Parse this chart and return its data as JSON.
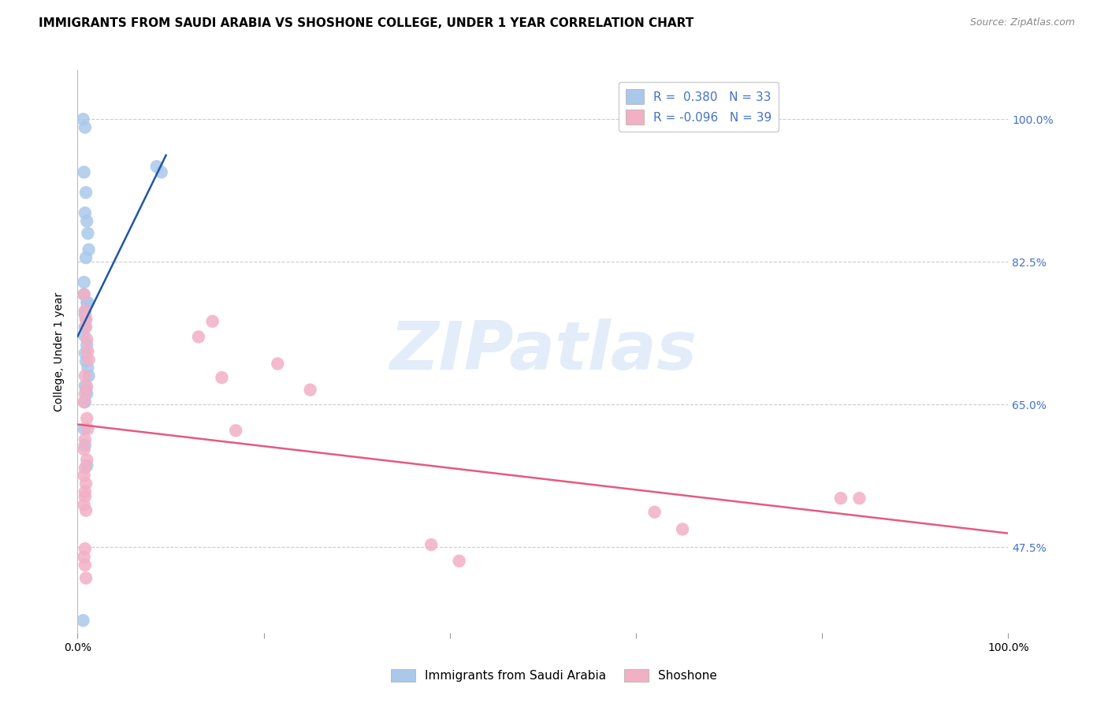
{
  "title": "IMMIGRANTS FROM SAUDI ARABIA VS SHOSHONE COLLEGE, UNDER 1 YEAR CORRELATION CHART",
  "source": "Source: ZipAtlas.com",
  "ylabel": "College, Under 1 year",
  "xlim": [
    0.0,
    1.0
  ],
  "ylim": [
    0.37,
    1.06
  ],
  "x_tick_labels": [
    "0.0%",
    "100.0%"
  ],
  "x_tick_positions": [
    0.0,
    1.0
  ],
  "y_tick_labels": [
    "47.5%",
    "65.0%",
    "82.5%",
    "100.0%"
  ],
  "y_tick_positions": [
    0.475,
    0.65,
    0.825,
    1.0
  ],
  "blue_label": "Immigrants from Saudi Arabia",
  "pink_label": "Shoshone",
  "blue_R": "0.380",
  "blue_N": "33",
  "pink_R": "-0.096",
  "pink_N": "39",
  "blue_color": "#aac8ea",
  "pink_color": "#f2b0c5",
  "blue_line_color": "#2055a5",
  "pink_line_color": "#e55a80",
  "blue_x": [
    0.006,
    0.008,
    0.007,
    0.009,
    0.008,
    0.01,
    0.011,
    0.012,
    0.009,
    0.007,
    0.007,
    0.01,
    0.011,
    0.008,
    0.008,
    0.009,
    0.008,
    0.007,
    0.01,
    0.008,
    0.009,
    0.011,
    0.012,
    0.008,
    0.009,
    0.01,
    0.008,
    0.007,
    0.008,
    0.01,
    0.085,
    0.09,
    0.006
  ],
  "blue_y": [
    1.0,
    0.99,
    0.935,
    0.91,
    0.885,
    0.875,
    0.86,
    0.84,
    0.83,
    0.8,
    0.785,
    0.775,
    0.775,
    0.763,
    0.76,
    0.754,
    0.745,
    0.735,
    0.723,
    0.713,
    0.703,
    0.695,
    0.685,
    0.673,
    0.668,
    0.663,
    0.653,
    0.62,
    0.6,
    0.575,
    0.942,
    0.935,
    0.385
  ],
  "pink_x": [
    0.007,
    0.008,
    0.009,
    0.009,
    0.01,
    0.011,
    0.012,
    0.008,
    0.01,
    0.008,
    0.007,
    0.01,
    0.011,
    0.008,
    0.007,
    0.01,
    0.008,
    0.007,
    0.009,
    0.008,
    0.008,
    0.007,
    0.009,
    0.13,
    0.145,
    0.155,
    0.17,
    0.215,
    0.25,
    0.38,
    0.41,
    0.62,
    0.65,
    0.82,
    0.84,
    0.008,
    0.007,
    0.008,
    0.009
  ],
  "pink_y": [
    0.785,
    0.765,
    0.755,
    0.745,
    0.73,
    0.715,
    0.705,
    0.685,
    0.672,
    0.663,
    0.653,
    0.633,
    0.62,
    0.607,
    0.595,
    0.582,
    0.572,
    0.563,
    0.553,
    0.543,
    0.537,
    0.527,
    0.52,
    0.733,
    0.752,
    0.683,
    0.618,
    0.7,
    0.668,
    0.478,
    0.458,
    0.518,
    0.497,
    0.535,
    0.535,
    0.473,
    0.463,
    0.453,
    0.437
  ],
  "watermark_text": "ZIPatlas",
  "title_fontsize": 11,
  "axis_label_fontsize": 10,
  "tick_fontsize": 10,
  "legend_fontsize": 11
}
